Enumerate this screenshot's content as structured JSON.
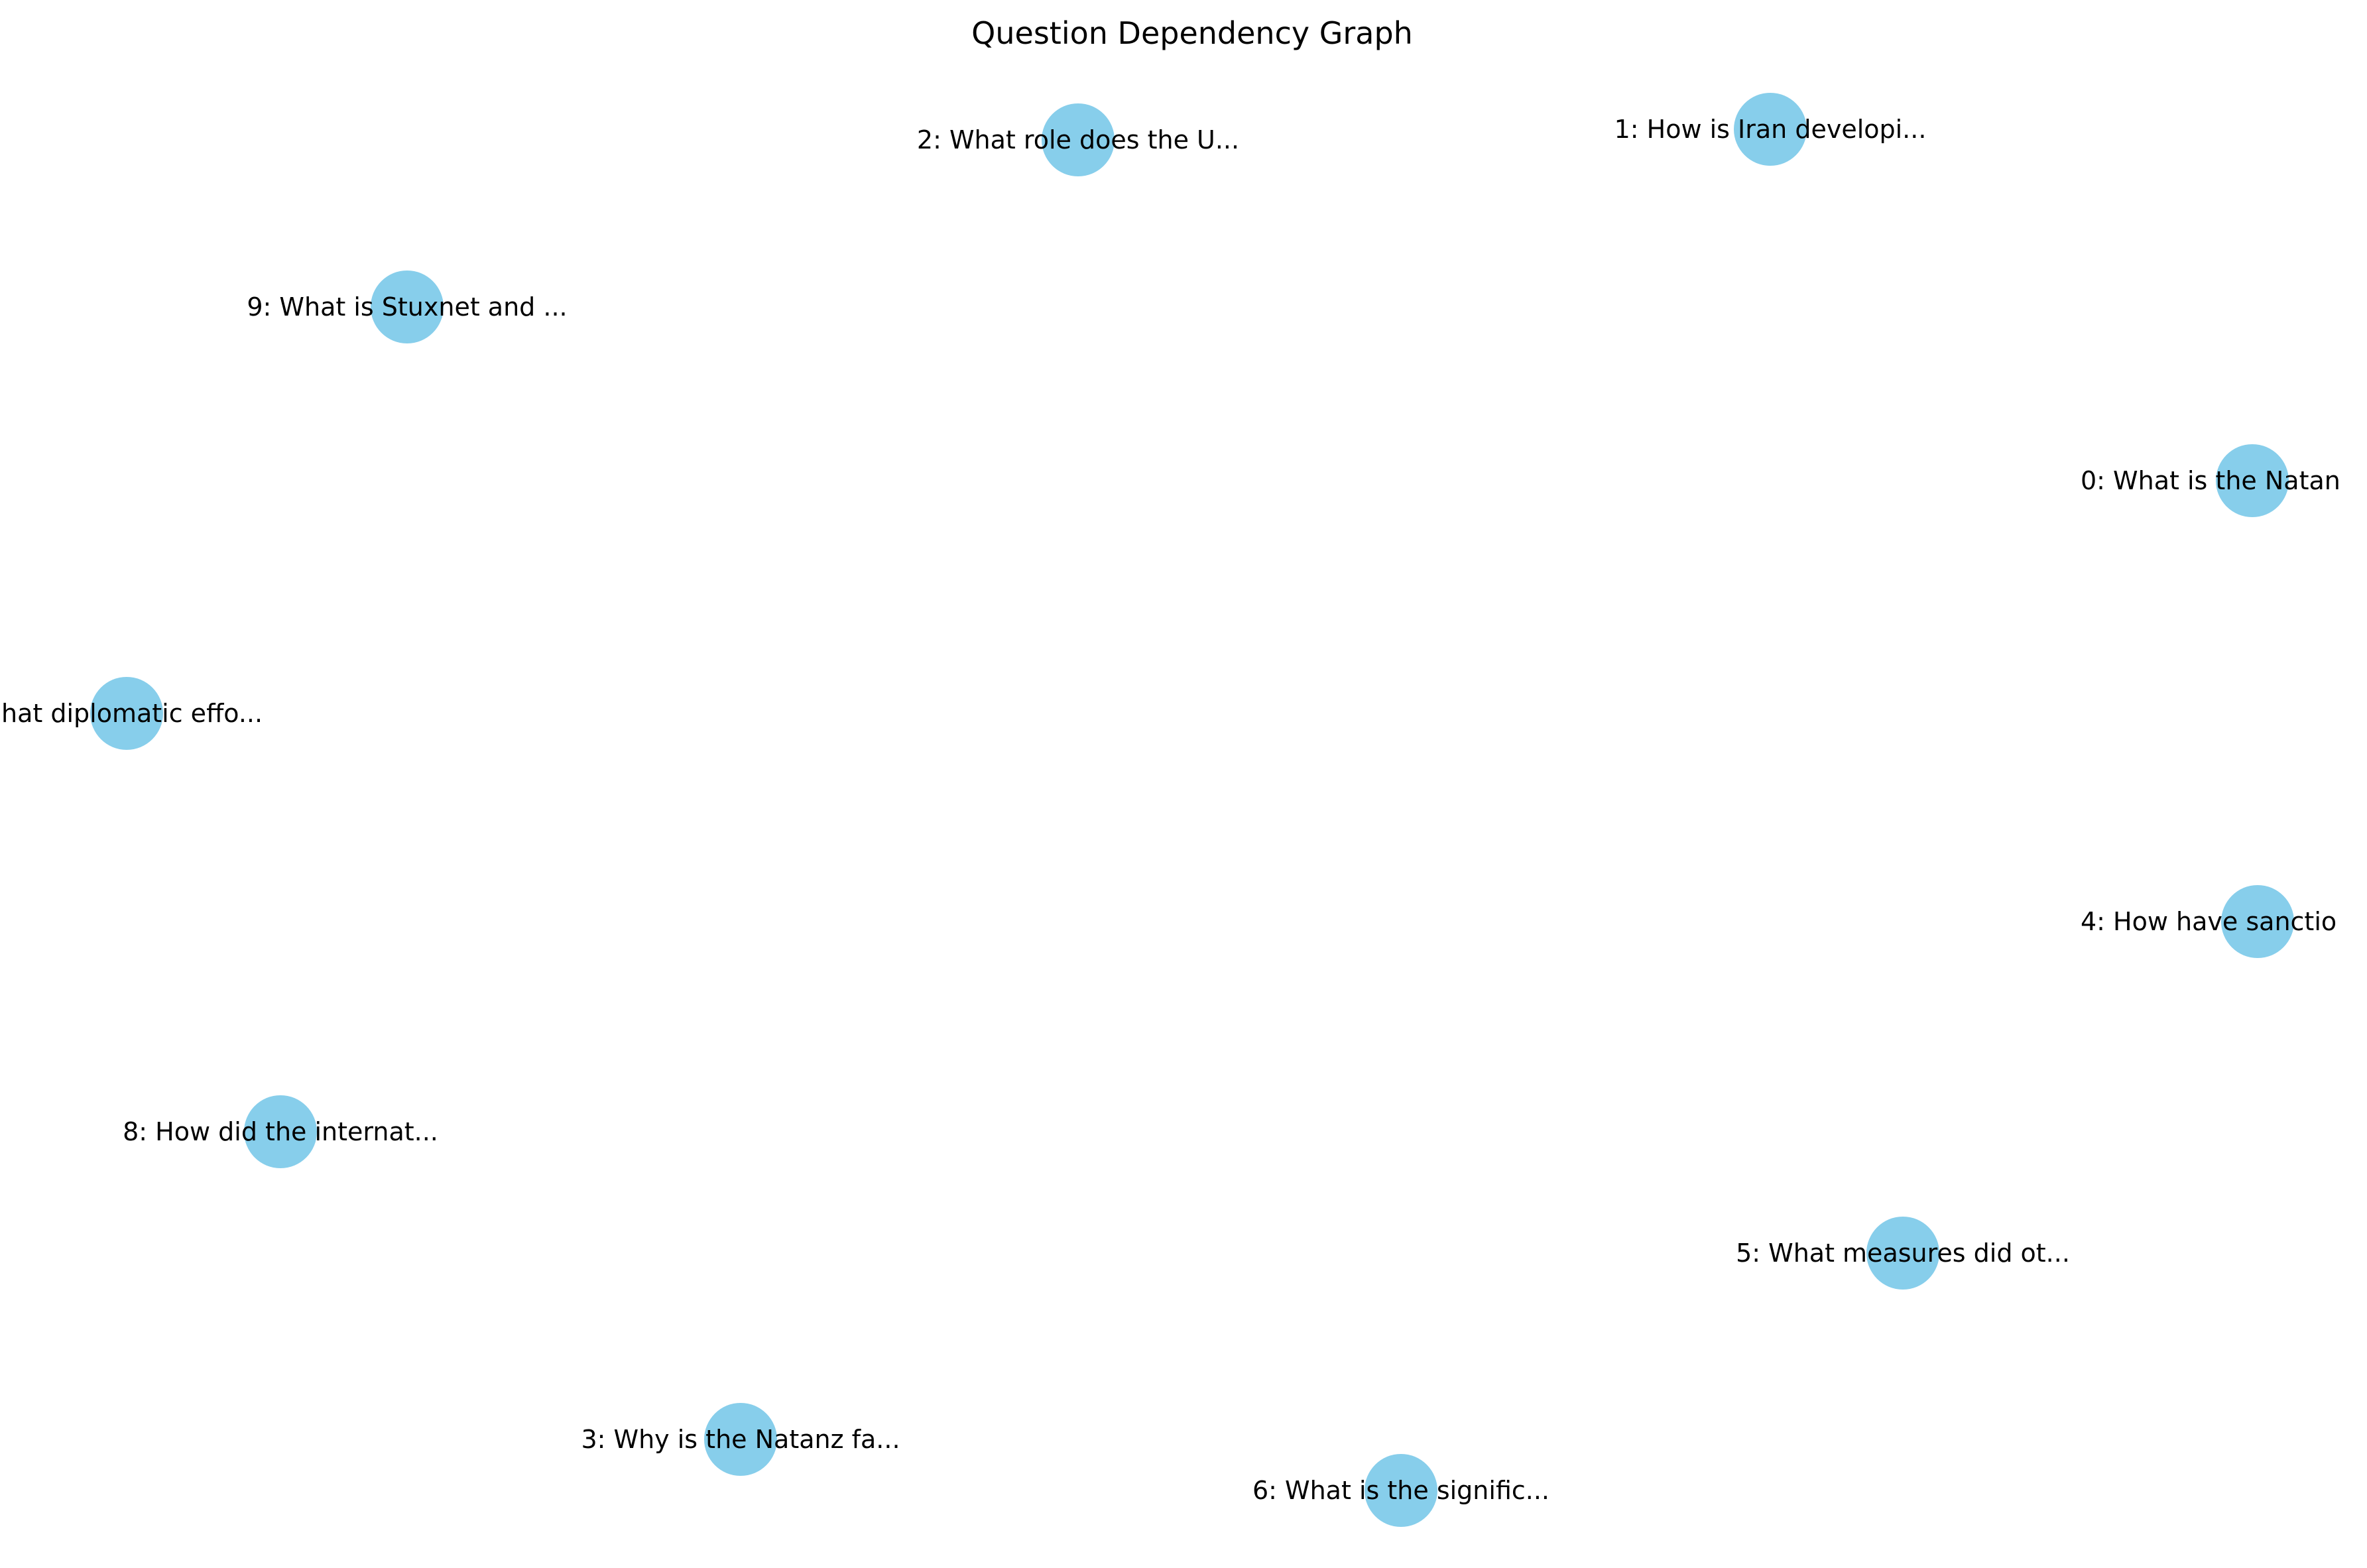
{
  "title": "Question Dependency Graph",
  "node_color": "#87ceeb",
  "nodes": [
    {
      "id": 0,
      "label": "0: What is the Natan"
    },
    {
      "id": 1,
      "label": "1: How is Iran developi..."
    },
    {
      "id": 2,
      "label": "2: What role does the U..."
    },
    {
      "id": 3,
      "label": "3: Why is the Natanz fa..."
    },
    {
      "id": 4,
      "label": "4: How have sanctio"
    },
    {
      "id": 5,
      "label": "5: What measures did ot..."
    },
    {
      "id": 6,
      "label": "6: What is the signific..."
    },
    {
      "id": 7,
      "label": "hat diplomatic effo..."
    },
    {
      "id": 8,
      "label": "8: How did the internat..."
    },
    {
      "id": 9,
      "label": "9: What is Stuxnet and ..."
    }
  ],
  "edges": []
}
